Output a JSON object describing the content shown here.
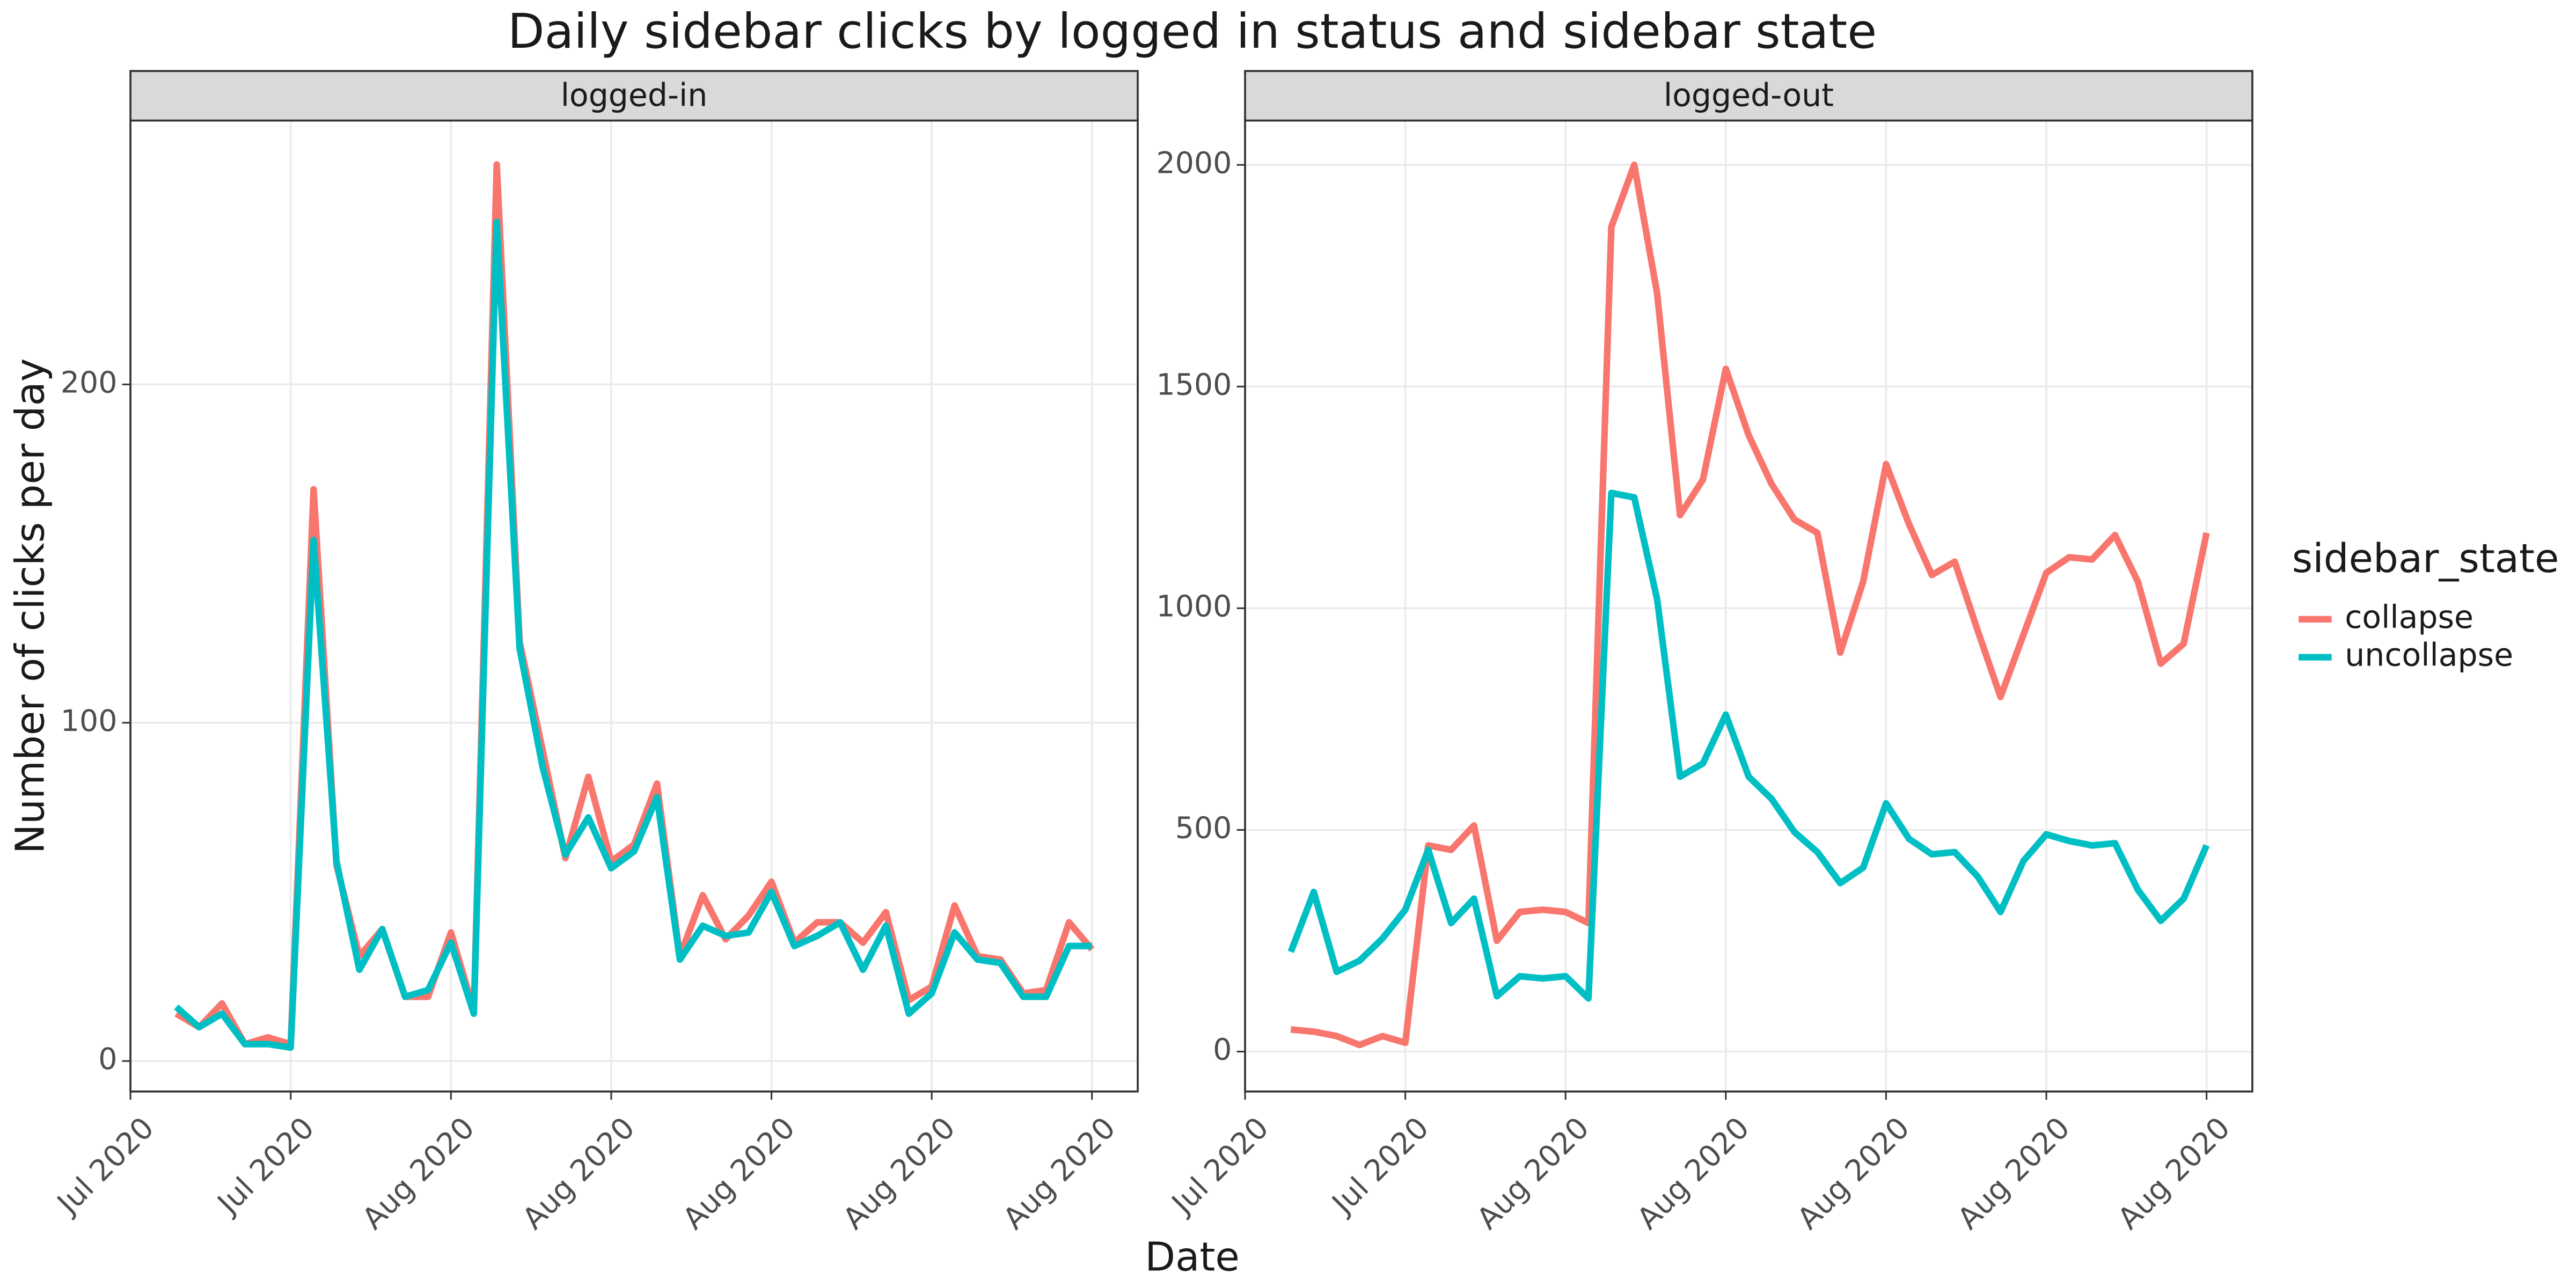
{
  "chart_data": {
    "type": "line",
    "title": "Daily sidebar clicks by logged in status and sidebar state",
    "x_label": "Date",
    "y_label": "Number of clicks per day",
    "legend_title": "sidebar_state",
    "x": [
      0,
      1,
      2,
      3,
      4,
      5,
      6,
      7,
      8,
      9,
      10,
      11,
      12,
      13,
      14,
      15,
      16,
      17,
      18,
      19,
      20,
      21,
      22,
      23,
      24,
      25,
      26,
      27,
      28,
      29,
      30,
      31,
      32,
      33,
      34,
      35,
      36,
      37,
      38,
      39,
      40
    ],
    "xlim": [
      -2,
      42
    ],
    "xticks": [
      {
        "value": -2,
        "label": "Jul 2020"
      },
      {
        "value": 5,
        "label": "Jul 2020"
      },
      {
        "value": 12,
        "label": "Aug 2020"
      },
      {
        "value": 19,
        "label": "Aug 2020"
      },
      {
        "value": 26,
        "label": "Aug 2020"
      },
      {
        "value": 33,
        "label": "Aug 2020"
      },
      {
        "value": 40,
        "label": "Aug 2020"
      }
    ],
    "grid": true,
    "panels": [
      {
        "title": "logged-in",
        "ylim": [
          -9,
          278
        ],
        "yticks": [
          0,
          100,
          200
        ],
        "series": [
          {
            "name": "collapse",
            "color": "#F8766D",
            "values": [
              14,
              10,
              17,
              5,
              7,
              5,
              169,
              58,
              31,
              39,
              19,
              19,
              38,
              15,
              265,
              124,
              92,
              60,
              84,
              59,
              64,
              82,
              31,
              49,
              36,
              43,
              53,
              35,
              41,
              41,
              35,
              44,
              18,
              22,
              46,
              31,
              30,
              20,
              21,
              41,
              33
            ]
          },
          {
            "name": "uncollapse",
            "color": "#00BFC4",
            "values": [
              16,
              10,
              14,
              5,
              5,
              4,
              154,
              59,
              27,
              39,
              19,
              21,
              35,
              14,
              248,
              122,
              87,
              61,
              72,
              57,
              62,
              78,
              30,
              40,
              37,
              38,
              50,
              34,
              37,
              41,
              27,
              40,
              14,
              20,
              38,
              30,
              29,
              19,
              19,
              34,
              34
            ]
          }
        ]
      },
      {
        "title": "logged-out",
        "ylim": [
          -90,
          2100
        ],
        "yticks": [
          0,
          500,
          1000,
          1500,
          2000
        ],
        "series": [
          {
            "name": "collapse",
            "color": "#F8766D",
            "values": [
              50,
              45,
              35,
              15,
              35,
              20,
              465,
              455,
              510,
              250,
              315,
              320,
              315,
              290,
              1860,
              2000,
              1710,
              1210,
              1290,
              1540,
              1390,
              1280,
              1200,
              1170,
              900,
              1060,
              1325,
              1190,
              1075,
              1105,
              950,
              800,
              940,
              1080,
              1115,
              1110,
              1165,
              1060,
              875,
              920,
              1170
            ]
          },
          {
            "name": "uncollapse",
            "color": "#00BFC4",
            "values": [
              225,
              360,
              180,
              205,
              255,
              320,
              455,
              290,
              345,
              125,
              170,
              165,
              170,
              120,
              1260,
              1250,
              1020,
              620,
              650,
              760,
              620,
              570,
              495,
              450,
              380,
              415,
              560,
              480,
              445,
              450,
              395,
              315,
              430,
              490,
              475,
              465,
              470,
              365,
              295,
              345,
              465
            ]
          }
        ]
      }
    ]
  }
}
